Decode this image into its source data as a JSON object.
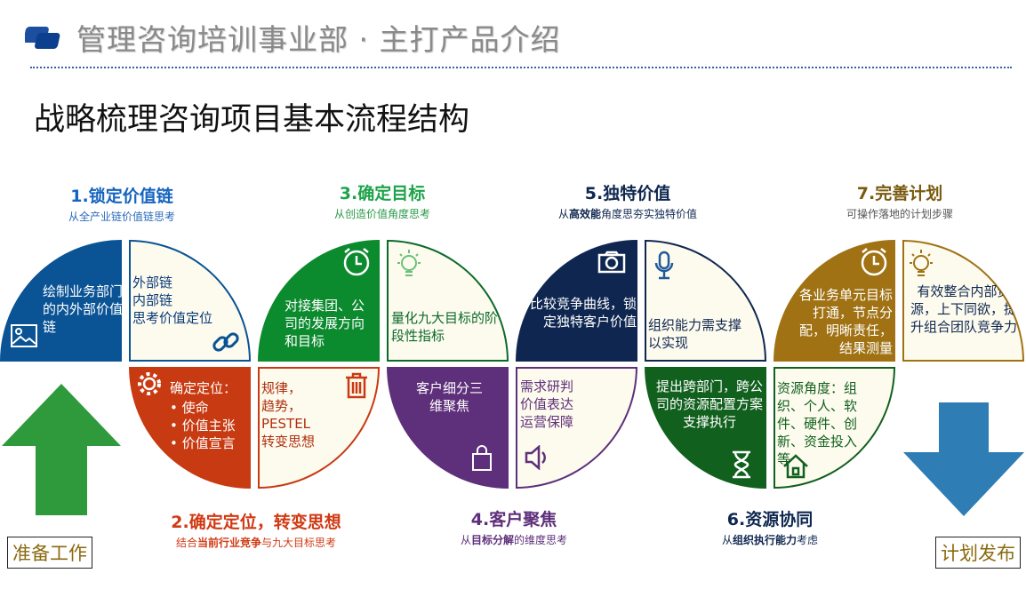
{
  "header": {
    "title": "管理咨询培训事业部 · 主打产品介绍",
    "logo_icon": "stacked-squares-logo"
  },
  "heading": "战略梳理咨询项目基本流程结构",
  "colors": {
    "step1": "#0a5394",
    "step2": "#c83a12",
    "step3": "#0b8a2e",
    "step4": "#5e2f7a",
    "step5": "#0f2750",
    "step6": "#11601e",
    "step7": "#a07214",
    "cream": "#fdfbee"
  },
  "steps": [
    {
      "title": "1.锁定价值链",
      "sub": "从全产业链价值链思考",
      "main": "绘制业务部门的内外部价值链",
      "detail": [
        "外部链",
        "内部链",
        "思考价值定位"
      ],
      "icons": [
        "image-icon",
        "link-icon"
      ]
    },
    {
      "title": "2.确定定位，转变思想",
      "sub_pre": "结合",
      "sub_bold": "当前行业竞争",
      "sub_post": "与九大目标思考",
      "main": "确定定位：",
      "bullets": [
        "使命",
        "价值主张",
        "价值宣言"
      ],
      "detail": [
        "规律，",
        "趋势，",
        "PESTEL",
        "转变思想"
      ],
      "icons": [
        "gear-icon",
        "trash-icon"
      ]
    },
    {
      "title": "3.确定目标",
      "sub": "从创造价值角度思考",
      "main": "对接集团、公司的发展方向和目标",
      "detail": "量化九大目标的阶段性指标",
      "icons": [
        "alarm-clock-icon",
        "lightbulb-icon"
      ]
    },
    {
      "title": "4.客户聚焦",
      "sub_pre": "从",
      "sub_bold": "目标分解",
      "sub_post": "的维度思考",
      "main": "客户细分三维聚焦",
      "detail": [
        "需求研判",
        "价值表达",
        "运营保障"
      ],
      "icons": [
        "shopping-bag-icon",
        "speaker-icon"
      ]
    },
    {
      "title": "5.独特价值",
      "sub_pre": "从",
      "sub_bold": "高效能",
      "sub_post": "角度思夯实独特价值",
      "main": "比较竞争曲线，锁定独特客户价值",
      "detail": "组织能力需支撑以实现",
      "icons": [
        "camera-icon",
        "microphone-icon"
      ]
    },
    {
      "title": "6.资源协同",
      "sub_pre": "从",
      "sub_bold": "组织执行能力",
      "sub_post": "考虑",
      "main": "提出跨部门，跨公司的资源配置方案支撑执行",
      "detail": "资源角度：组织、个人、软件、硬件、创新、资金投入等",
      "icons": [
        "hourglass-icon",
        "house-icon"
      ]
    },
    {
      "title": "7.完善计划",
      "sub": "可操作落地的计划步骤",
      "main": "各业务单元目标打通，节点分配，明晰责任，结果测量",
      "detail": "有效整合内部资源，上下同欲，提升组合团队竞争力",
      "icons": [
        "alarm-clock-icon",
        "lightbulb-icon"
      ]
    }
  ],
  "start_label": "准备工作",
  "end_label": "计划发布"
}
